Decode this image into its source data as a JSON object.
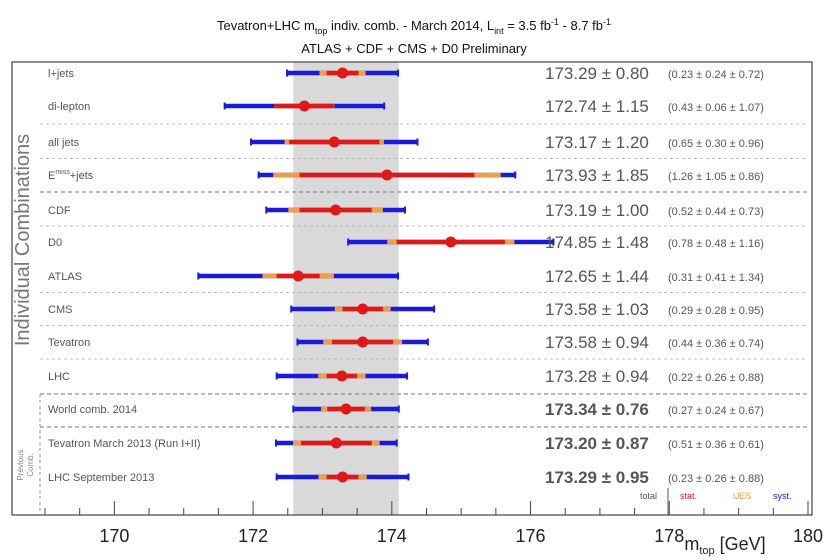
{
  "chart_data": {
    "type": "forest",
    "title": "Tevatron+LHC m",
    "title_sub": "top",
    "title_rest": " indiv. comb. - March 2014,  L",
    "lumi_sub": "int",
    "lumi_range": " = 3.5 fb",
    "lumi_exp1": "-1",
    "lumi_sep": " - 8.7 fb",
    "lumi_exp2": "-1",
    "subtitle": "ATLAS + CDF + CMS + D0 Preliminary",
    "side_label_main": "Individual Combinations",
    "side_label_prev_1": "Previous",
    "side_label_prev_2": "Comb.",
    "xlabel_main": "m",
    "xlabel_sub": "top",
    "xlabel_unit": " [GeV]",
    "xlim": [
      169,
      180
    ],
    "xticks": [
      "170",
      "172",
      "174",
      "176",
      "178",
      "180"
    ],
    "band": [
      172.58,
      174.1
    ],
    "legend": {
      "total": "total",
      "stat": "stat.",
      "jes": "iJES",
      "syst": "syst."
    },
    "colors": {
      "total": "#1a1adc",
      "stat": "#e01818",
      "jes": "#f0a040",
      "band": "#d9d9d9",
      "world": "#e01818",
      "prev": "#1a1adc",
      "default": "#555555"
    },
    "rows": [
      {
        "label": "l+jets",
        "mean": 173.29,
        "total": 0.8,
        "stat": 0.23,
        "jes": 0.24,
        "syst": 0.72,
        "value_text": "173.29 ± 0.80",
        "breakdown": "(0.23 ± 0.24 ± 0.72)",
        "style": "default"
      },
      {
        "label": "di-lepton",
        "mean": 172.74,
        "total": 1.15,
        "stat": 0.43,
        "jes": 0.06,
        "syst": 1.07,
        "value_text": "172.74 ± 1.15",
        "breakdown": "(0.43 ± 0.06 ± 1.07)",
        "style": "default"
      },
      {
        "label": "all jets",
        "mean": 173.17,
        "total": 1.2,
        "stat": 0.65,
        "jes": 0.3,
        "syst": 0.96,
        "value_text": "173.17 ± 1.20",
        "breakdown": "(0.65 ± 0.30 ± 0.96)",
        "style": "default"
      },
      {
        "label": "E",
        "label_sup": "miss",
        "label_suffix": "+jets",
        "mean": 173.93,
        "total": 1.85,
        "stat": 1.26,
        "jes": 1.05,
        "syst": 0.86,
        "value_text": "173.93 ± 1.85",
        "breakdown": "(1.26 ± 1.05 ± 0.86)",
        "style": "default"
      },
      {
        "label": "CDF",
        "mean": 173.19,
        "total": 1.0,
        "stat": 0.52,
        "jes": 0.44,
        "syst": 0.73,
        "value_text": "173.19 ± 1.00",
        "breakdown": "(0.52 ± 0.44 ± 0.73)",
        "style": "default"
      },
      {
        "label": "D0",
        "mean": 174.85,
        "total": 1.48,
        "stat": 0.78,
        "jes": 0.48,
        "syst": 1.16,
        "value_text": "174.85 ± 1.48",
        "breakdown": "(0.78 ± 0.48 ± 1.16)",
        "style": "default"
      },
      {
        "label": "ATLAS",
        "mean": 172.65,
        "total": 1.44,
        "stat": 0.31,
        "jes": 0.41,
        "syst": 1.34,
        "value_text": "172.65 ± 1.44",
        "breakdown": "(0.31 ± 0.41 ± 1.34)",
        "style": "default"
      },
      {
        "label": "CMS",
        "mean": 173.58,
        "total": 1.03,
        "stat": 0.29,
        "jes": 0.28,
        "syst": 0.95,
        "value_text": "173.58 ± 1.03",
        "breakdown": "(0.29 ± 0.28 ± 0.95)",
        "style": "default"
      },
      {
        "label": "Tevatron",
        "mean": 173.58,
        "total": 0.94,
        "stat": 0.44,
        "jes": 0.36,
        "syst": 0.74,
        "value_text": "173.58 ± 0.94",
        "breakdown": "(0.44 ± 0.36 ± 0.74)",
        "style": "default"
      },
      {
        "label": "LHC",
        "mean": 173.28,
        "total": 0.94,
        "stat": 0.22,
        "jes": 0.26,
        "syst": 0.88,
        "value_text": "173.28 ± 0.94",
        "breakdown": "(0.22 ± 0.26 ± 0.88)",
        "style": "default"
      },
      {
        "label": "World comb. 2014",
        "mean": 173.34,
        "total": 0.76,
        "stat": 0.27,
        "jes": 0.24,
        "syst": 0.67,
        "value_text": "173.34 ± 0.76",
        "breakdown": "(0.27 ± 0.24 ± 0.67)",
        "style": "world"
      },
      {
        "label": "Tevatron March 2013 (Run I+II)",
        "mean": 173.2,
        "total": 0.87,
        "stat": 0.51,
        "jes": 0.36,
        "syst": 0.61,
        "value_text": "173.20 ± 0.87",
        "breakdown": "(0.51 ± 0.36 ± 0.61)",
        "style": "prev"
      },
      {
        "label": "LHC September 2013",
        "mean": 173.29,
        "total": 0.95,
        "stat": 0.23,
        "jes": 0.26,
        "syst": 0.88,
        "value_text": "173.29 ± 0.95",
        "breakdown": "(0.23 ± 0.26 ± 0.88)",
        "style": "prev"
      }
    ]
  }
}
